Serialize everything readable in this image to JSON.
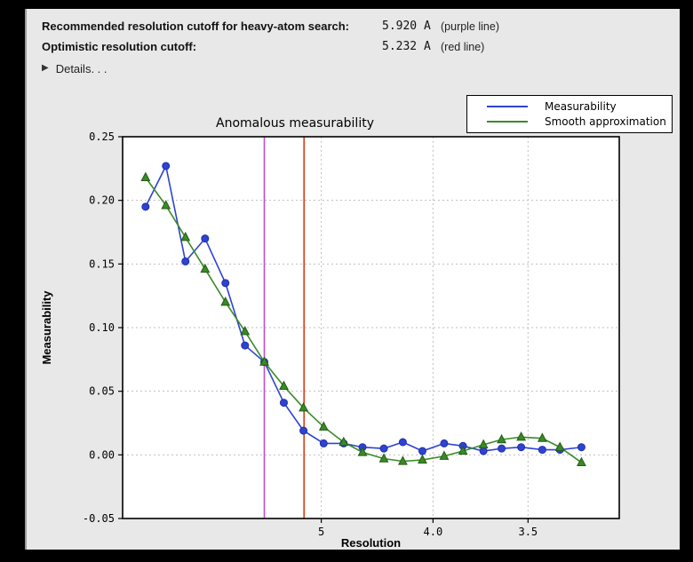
{
  "colors": {
    "panel_bg": "#e8e8e8",
    "plot_bg": "#ffffff",
    "grid": "#bfbfbf",
    "purple_line": "#c24ecb",
    "red_line": "#da3c10",
    "measurability_blue": "#2f43cf",
    "smooth_green": "#3a8a27"
  },
  "header": {
    "rows": [
      {
        "label": "Recommended resolution cutoff for heavy-atom search:",
        "value": "5.920 A",
        "note": "(purple line)"
      },
      {
        "label": "Optimistic resolution cutoff:",
        "value": "5.232 A",
        "note": "(red line)"
      }
    ],
    "details_label": "Details. . .",
    "disclosure_icon": "right-pointing-triangle"
  },
  "chart_data": {
    "type": "line",
    "title": "Anomalous measurability",
    "xlabel": "Resolution",
    "ylabel": "Measurability",
    "grid": true,
    "x": {
      "unit": "Angstrom (d-spacing)",
      "scale": "linear in 1/d^2",
      "s_range": [
        0,
        0.1
      ],
      "ticks": [
        {
          "label": "5",
          "d": 5.0
        },
        {
          "label": "4.0",
          "d": 4.0
        },
        {
          "label": "3.5",
          "d": 3.5
        }
      ]
    },
    "y": {
      "range": [
        -0.05,
        0.25
      ],
      "ticks": [
        {
          "label": "0.25",
          "v": 0.25,
          "grid": false
        },
        {
          "label": "0.20",
          "v": 0.2,
          "grid": true
        },
        {
          "label": "0.15",
          "v": 0.15,
          "grid": true
        },
        {
          "label": "0.10",
          "v": 0.1,
          "grid": true
        },
        {
          "label": "0.05",
          "v": 0.05,
          "grid": true
        },
        {
          "label": "0.00",
          "v": 0.0,
          "grid": true
        },
        {
          "label": "-0.05",
          "v": -0.05,
          "grid": false
        }
      ]
    },
    "resolution_d": [
      14.71,
      10.71,
      8.89,
      7.76,
      6.95,
      6.37,
      5.92,
      5.55,
      5.24,
      4.97,
      4.74,
      4.55,
      4.36,
      4.21,
      4.07,
      3.93,
      3.82,
      3.71,
      3.62,
      3.53,
      3.44,
      3.37,
      3.29
    ],
    "series": [
      {
        "name": "Measurability",
        "color": "#2f43cf",
        "edge": "#1d2fae",
        "marker": "circle",
        "values": [
          0.195,
          0.227,
          0.152,
          0.17,
          0.135,
          0.086,
          0.073,
          0.041,
          0.019,
          0.009,
          0.009,
          0.006,
          0.005,
          0.01,
          0.003,
          0.009,
          0.007,
          0.003,
          0.005,
          0.006,
          0.004,
          0.004,
          0.006
        ]
      },
      {
        "name": "Smooth approximation",
        "color": "#3a8a27",
        "edge": "#215c12",
        "marker": "triangle",
        "values": [
          0.218,
          0.196,
          0.171,
          0.146,
          0.12,
          0.097,
          0.073,
          0.054,
          0.037,
          0.022,
          0.01,
          0.002,
          -0.003,
          -0.005,
          -0.004,
          -0.001,
          0.003,
          0.008,
          0.012,
          0.014,
          0.013,
          0.006,
          -0.006
        ]
      }
    ],
    "cutoff_lines": [
      {
        "name": "purple-cutoff-line",
        "d": 5.92,
        "color": "#c24ecb"
      },
      {
        "name": "red-cutoff-line",
        "d": 5.232,
        "color": "#da3c10"
      }
    ],
    "legend": {
      "position": "top-right"
    }
  }
}
